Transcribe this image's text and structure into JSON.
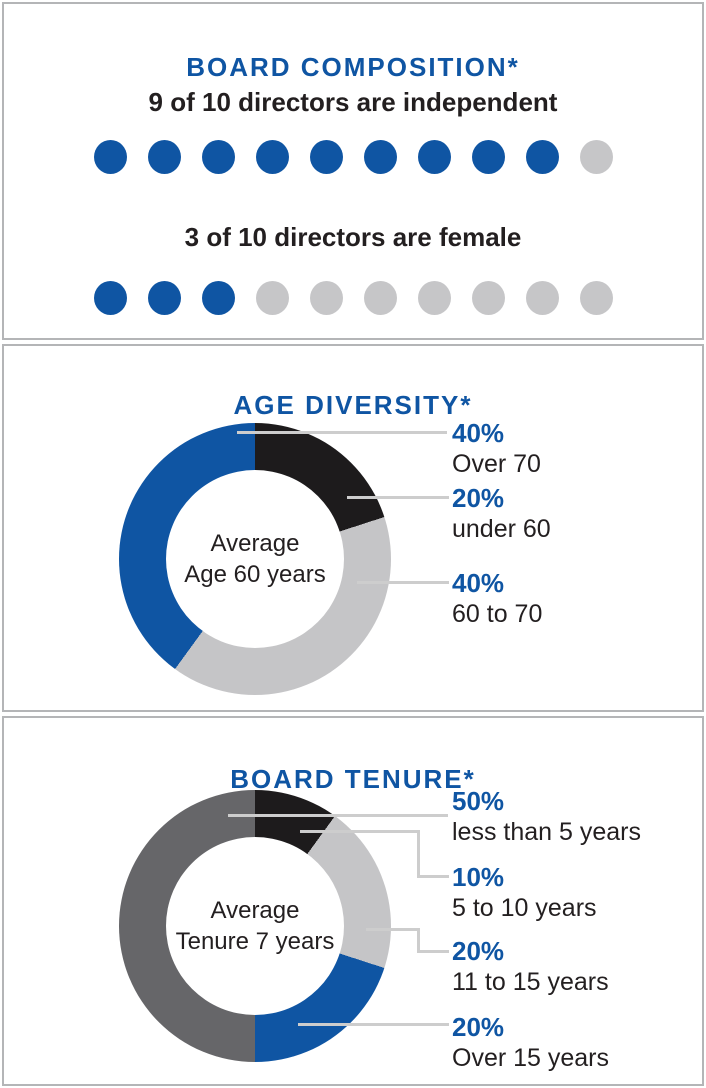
{
  "colors": {
    "blue": "#0f55a3",
    "black": "#1d1b1c",
    "light_gray": "#c5c5c7",
    "dark_gray": "#666669",
    "empty_dot_gray": "#c6c6c8",
    "leader_line": "#cdcdcd",
    "panel_border": "#b4b5b7",
    "text": "#231f20"
  },
  "chart_data": [
    {
      "type": "pictograph",
      "title": "BOARD COMPOSITION*",
      "rows": [
        {
          "label": "9 of 10 directors are independent",
          "filled": 9,
          "total": 10,
          "filled_color": "#0f55a3",
          "empty_color": "#c6c6c8"
        },
        {
          "label": "3 of 10 directors are female",
          "filled": 3,
          "total": 10,
          "filled_color": "#0f55a3",
          "empty_color": "#c6c6c8"
        }
      ]
    },
    {
      "type": "pie",
      "variant": "donut",
      "title": "AGE DIVERSITY*",
      "center_label": [
        "Average",
        "Age 60 years"
      ],
      "segment_order": "clockwise-from-12-o'clock",
      "segments": [
        {
          "label": "under 60",
          "value": 20,
          "color": "#1d1b1c"
        },
        {
          "label": "60 to 70",
          "value": 40,
          "color": "#c5c5c7"
        },
        {
          "label": "Over 70",
          "value": 40,
          "color": "#0f55a3"
        }
      ],
      "legend": [
        {
          "pct": "40%",
          "label": "Over 70"
        },
        {
          "pct": "20%",
          "label": "under 60"
        },
        {
          "pct": "40%",
          "label": "60 to 70"
        }
      ]
    },
    {
      "type": "pie",
      "variant": "donut",
      "title": "BOARD TENURE*",
      "center_label": [
        "Average",
        "Tenure 7 years"
      ],
      "segment_order": "clockwise-from-12-o'clock",
      "segments": [
        {
          "label": "5 to 10 years",
          "value": 10,
          "color": "#1d1b1c"
        },
        {
          "label": "11 to 15 years",
          "value": 20,
          "color": "#c5c5c7"
        },
        {
          "label": "Over 15 years",
          "value": 20,
          "color": "#0f55a3"
        },
        {
          "label": "less than 5 years",
          "value": 50,
          "color": "#666669"
        }
      ],
      "legend": [
        {
          "pct": "50%",
          "label": "less than 5 years"
        },
        {
          "pct": "10%",
          "label": "5 to 10 years"
        },
        {
          "pct": "20%",
          "label": "11 to 15 years"
        },
        {
          "pct": "20%",
          "label": "Over 15 years"
        }
      ]
    }
  ]
}
